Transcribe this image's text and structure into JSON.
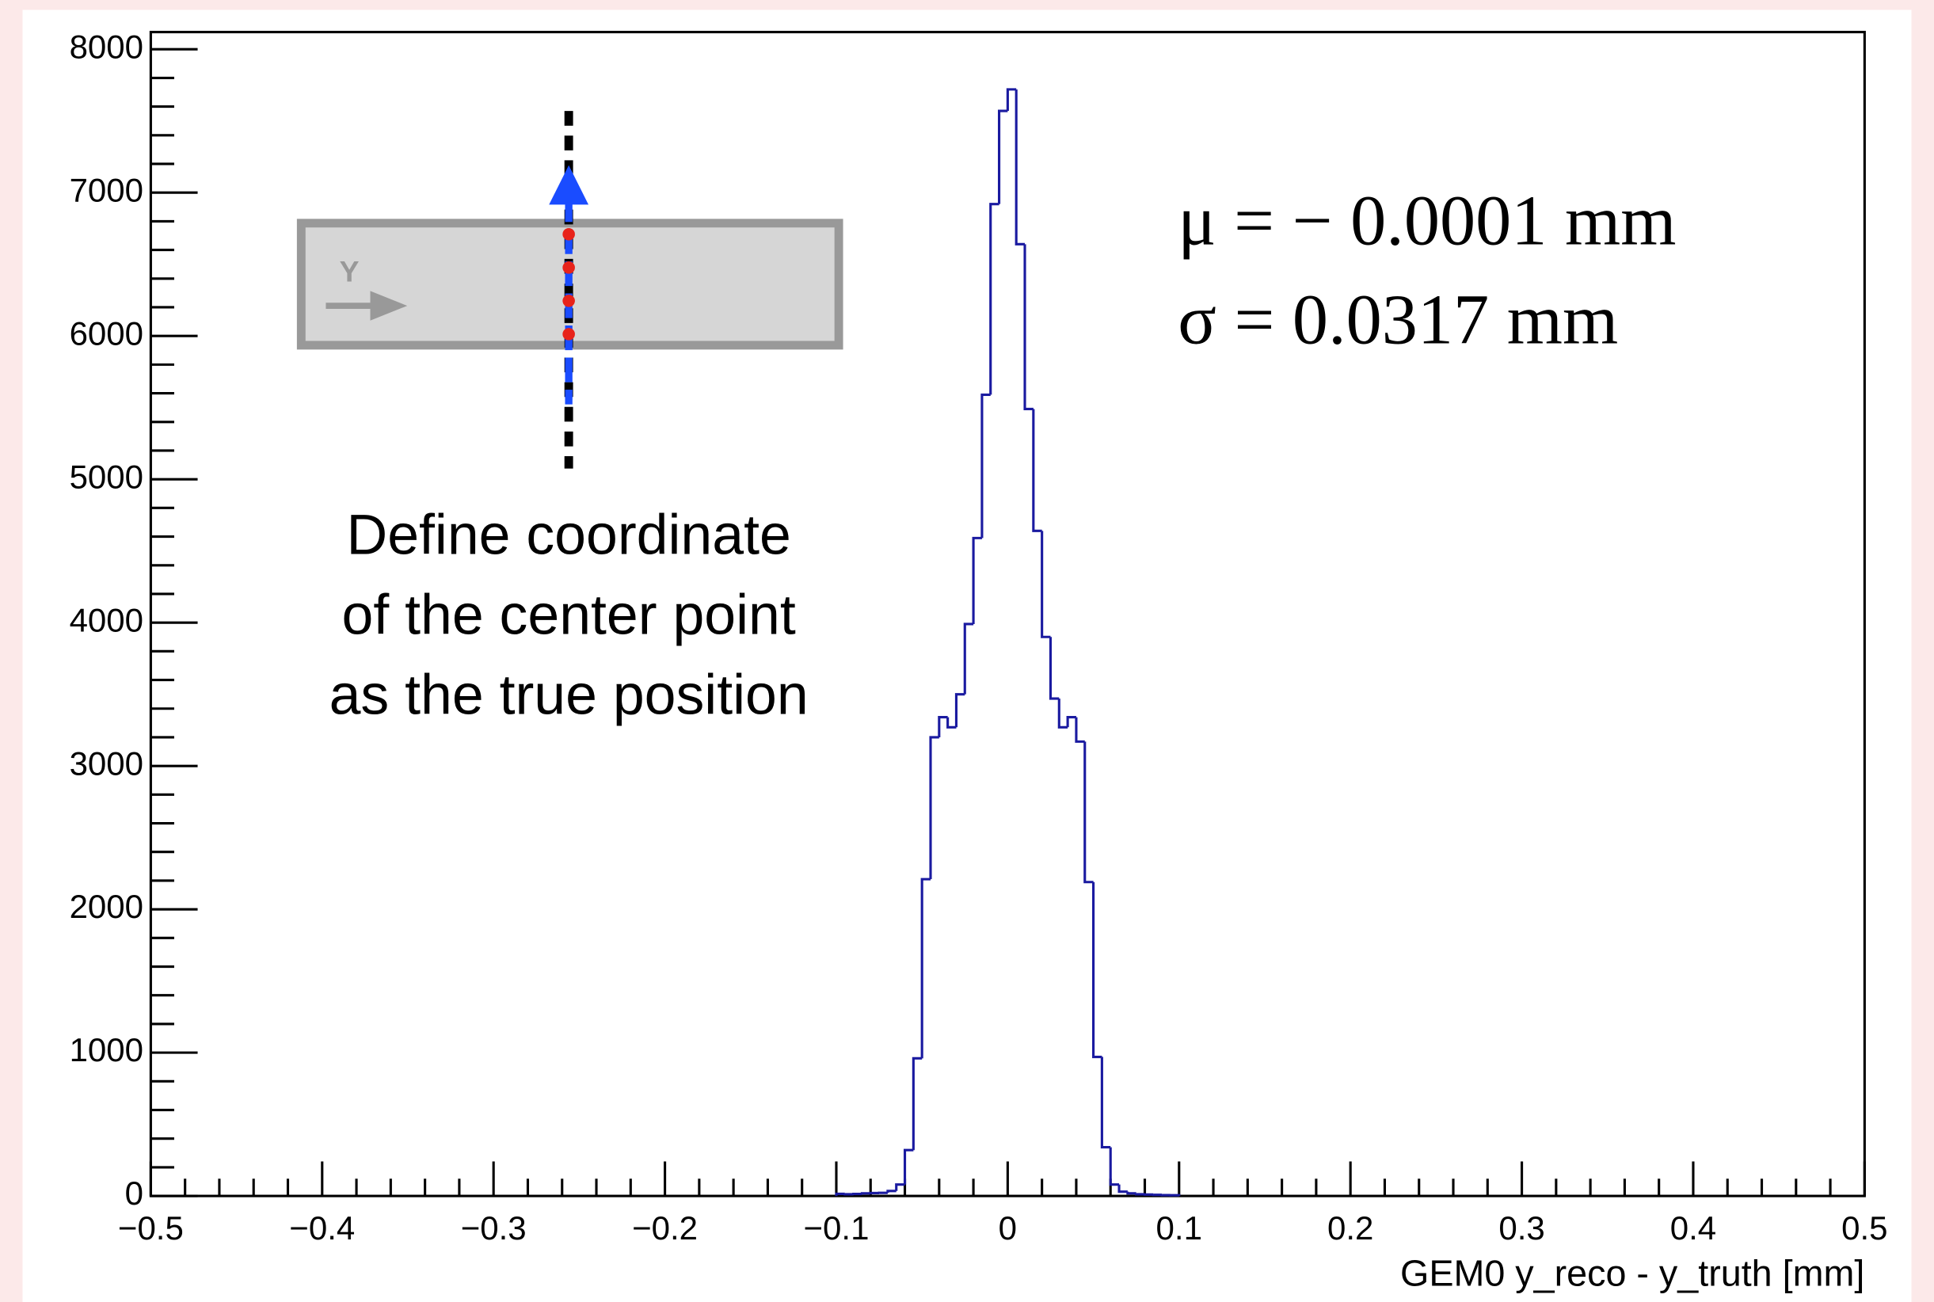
{
  "chart_data": {
    "type": "histogram",
    "x_label": "GEM0 y_reco - y_truth [mm]",
    "annotations": [
      "μ = − 0.0001 mm",
      "σ = 0.0317 mm",
      "Define coordinate",
      "of the center point",
      "as the true position"
    ],
    "inset_label": "Y",
    "color": "#1a1aa0",
    "bins": [
      -0.1,
      -0.095,
      -0.09,
      -0.085,
      -0.08,
      -0.075,
      -0.07,
      -0.065,
      -0.06,
      -0.055,
      -0.05,
      -0.045,
      -0.04,
      -0.035,
      -0.03,
      -0.025,
      -0.02,
      -0.015,
      -0.01,
      -0.005,
      0,
      0.005,
      0.01,
      0.015,
      0.02,
      0.025,
      0.03,
      0.035,
      0.04,
      0.045,
      0.05,
      0.055,
      0.06,
      0.065,
      0.07,
      0.075,
      0.08,
      0.085,
      0.09,
      0.095,
      0.1
    ],
    "values": [
      15,
      12,
      14,
      18,
      20,
      22,
      35,
      80,
      320,
      960,
      2210,
      3200,
      3340,
      3270,
      3500,
      3990,
      4590,
      5590,
      6920,
      7570,
      7720,
      6640,
      5490,
      4640,
      3900,
      3470,
      3270,
      3340,
      3170,
      2190,
      970,
      340,
      80,
      30,
      18,
      12,
      10,
      8,
      6,
      5
    ],
    "xlim": [
      -0.5,
      0.5
    ],
    "xticks": [
      {
        "value": -0.5,
        "label": "−0.5"
      },
      {
        "value": -0.4,
        "label": "−0.4"
      },
      {
        "value": -0.3,
        "label": "−0.3"
      },
      {
        "value": -0.2,
        "label": "−0.2"
      },
      {
        "value": -0.1,
        "label": "−0.1"
      },
      0,
      0.1,
      0.2,
      0.3,
      0.4,
      0.5
    ],
    "ylim": [
      0,
      8120
    ],
    "yticks": [
      0,
      1000,
      2000,
      3000,
      4000,
      5000,
      6000,
      7000,
      8000
    ]
  }
}
